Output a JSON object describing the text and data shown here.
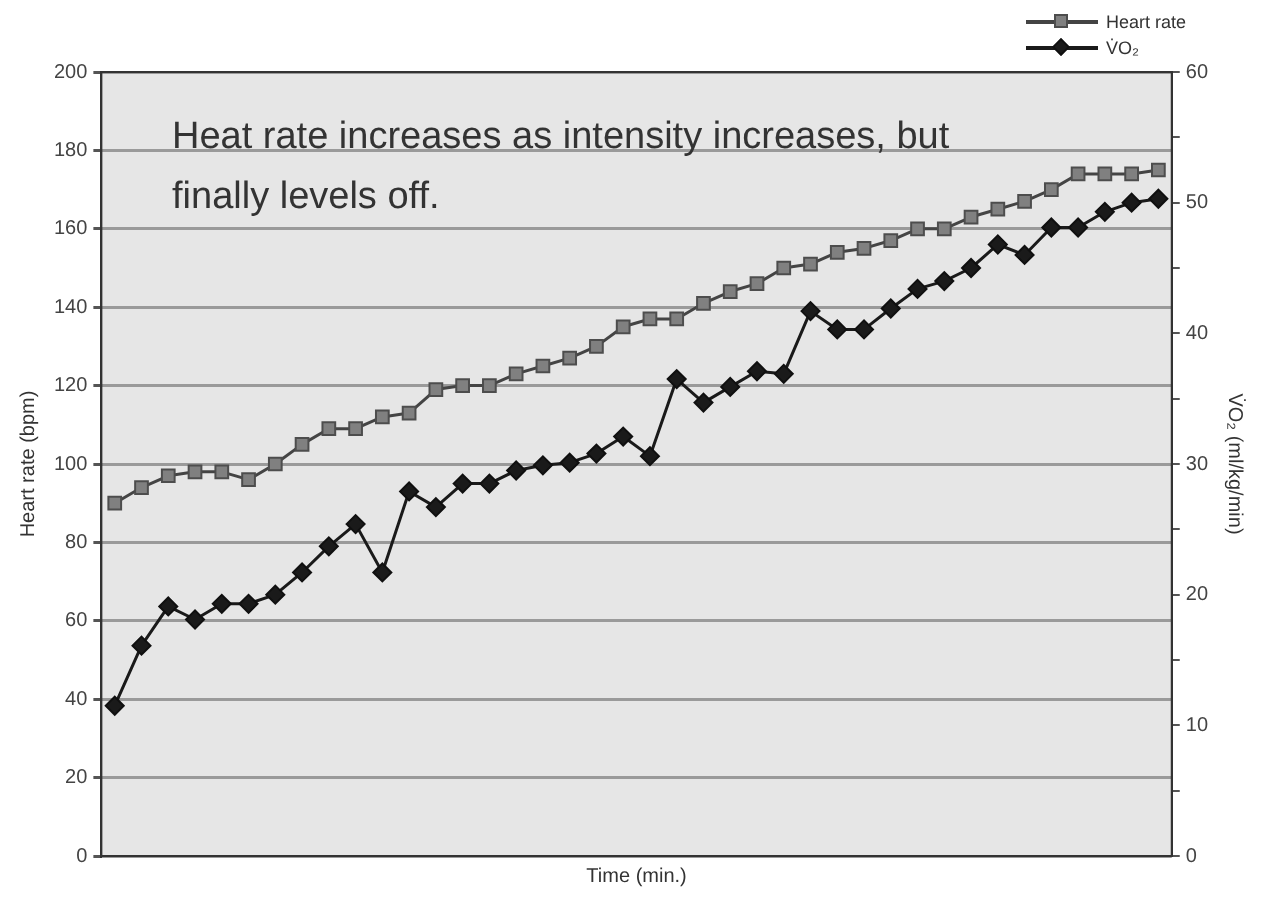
{
  "chart_data": {
    "type": "line",
    "xlabel": "Time (min.)",
    "ylabel": "Heart rate (bpm)",
    "y2label": "V̇O₂ (ml/kg/min)",
    "annotations": [
      "Heat rate increases as intensity increases, but finally levels off."
    ],
    "categories": [
      null,
      null,
      null,
      null,
      null,
      null,
      null,
      null,
      null,
      null,
      null,
      null,
      null,
      null,
      null,
      null,
      null,
      null,
      null,
      null,
      null,
      null,
      null,
      null,
      null,
      null,
      null,
      null,
      null,
      null,
      null,
      null,
      null,
      null,
      null,
      null,
      null,
      null,
      null,
      null
    ],
    "series": [
      {
        "name": "Heart rate",
        "color": "#808080",
        "marker": "square",
        "values": [
          90,
          94,
          97,
          98,
          98,
          96,
          100,
          105,
          109,
          109,
          112,
          113,
          119,
          120,
          120,
          123,
          125,
          127,
          130,
          135,
          137,
          137,
          141,
          144,
          146,
          150,
          151,
          154,
          155,
          157,
          160,
          160,
          163,
          165,
          167,
          170,
          174,
          174,
          174,
          175
        ]
      },
      {
        "name": "V̇O₂",
        "color": "#1a1a1a",
        "marker": "diamond",
        "axis": "y2",
        "values": [
          11.5,
          16.1,
          19.1,
          18.1,
          19.3,
          19.3,
          20.0,
          21.7,
          23.7,
          25.4,
          21.7,
          27.9,
          26.7,
          28.5,
          28.5,
          29.5,
          29.9,
          30.1,
          30.8,
          32.1,
          30.6,
          36.5,
          34.7,
          35.9,
          37.1,
          36.9,
          41.7,
          40.3,
          40.3,
          41.9,
          43.4,
          44.0,
          45.0,
          46.8,
          46.0,
          48.1,
          48.1,
          49.3,
          50.0,
          50.3
        ]
      }
    ],
    "ylim": [
      0,
      200
    ],
    "yticks": [
      0,
      20,
      40,
      60,
      80,
      100,
      120,
      140,
      160,
      180,
      200
    ],
    "y2lim": [
      0,
      60
    ],
    "y2ticks": [
      0,
      {
        "value": 5,
        "label": null
      },
      10,
      {
        "value": 15,
        "label": null
      },
      20,
      {
        "value": 25,
        "label": null
      },
      30,
      {
        "value": 35,
        "label": null
      },
      40,
      {
        "value": 45,
        "label": null
      },
      50,
      {
        "value": 55,
        "label": null
      },
      60
    ],
    "tick_labels": "y",
    "grid": "y",
    "legend": "top right",
    "line_style": "solid"
  }
}
